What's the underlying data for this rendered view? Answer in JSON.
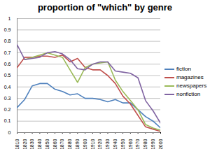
{
  "chart_data": {
    "type": "line",
    "title": "proportion of \"which\" by genre",
    "x": [
      1810,
      1820,
      1830,
      1840,
      1850,
      1860,
      1870,
      1880,
      1890,
      1900,
      1910,
      1920,
      1930,
      1940,
      1950,
      1960,
      1970,
      1980,
      1990,
      2000
    ],
    "series": [
      {
        "name": "fiction",
        "color": "#4f81bd",
        "values": [
          0.22,
          0.29,
          0.41,
          0.43,
          0.43,
          0.38,
          0.36,
          0.33,
          0.34,
          0.3,
          0.3,
          0.29,
          0.27,
          0.29,
          0.26,
          0.26,
          0.2,
          0.14,
          0.1,
          0.04
        ]
      },
      {
        "name": "magazines",
        "color": "#c0504d",
        "values": [
          0.57,
          0.66,
          0.66,
          0.67,
          0.67,
          0.66,
          0.68,
          0.62,
          0.65,
          0.57,
          0.55,
          0.55,
          0.5,
          0.43,
          0.32,
          0.25,
          0.15,
          0.05,
          0.03,
          0.01
        ]
      },
      {
        "name": "newspapers",
        "color": "#9bbb59",
        "values": [
          null,
          0.64,
          0.66,
          0.68,
          0.7,
          0.68,
          0.66,
          0.55,
          0.44,
          0.57,
          0.6,
          0.61,
          0.62,
          0.46,
          0.36,
          0.28,
          0.2,
          0.07,
          0.04,
          0.02
        ]
      },
      {
        "name": "nonfiction",
        "color": "#8064a2",
        "values": [
          0.77,
          0.64,
          0.65,
          0.66,
          0.7,
          0.71,
          0.69,
          0.64,
          0.56,
          0.55,
          0.6,
          0.62,
          0.62,
          0.54,
          0.53,
          0.52,
          0.48,
          0.28,
          0.19,
          0.08
        ]
      }
    ],
    "xlim": [
      1810,
      2000
    ],
    "xticks": [
      1810,
      1820,
      1830,
      1840,
      1850,
      1860,
      1870,
      1880,
      1890,
      1900,
      1910,
      1920,
      1930,
      1940,
      1950,
      1960,
      1970,
      1980,
      1990,
      2000
    ],
    "ylim": [
      0,
      1
    ],
    "yticks": [
      0,
      0.1,
      0.2,
      0.3,
      0.4,
      0.5,
      0.6,
      0.7,
      0.8,
      0.9,
      1
    ],
    "grid": true,
    "legend": "right"
  }
}
